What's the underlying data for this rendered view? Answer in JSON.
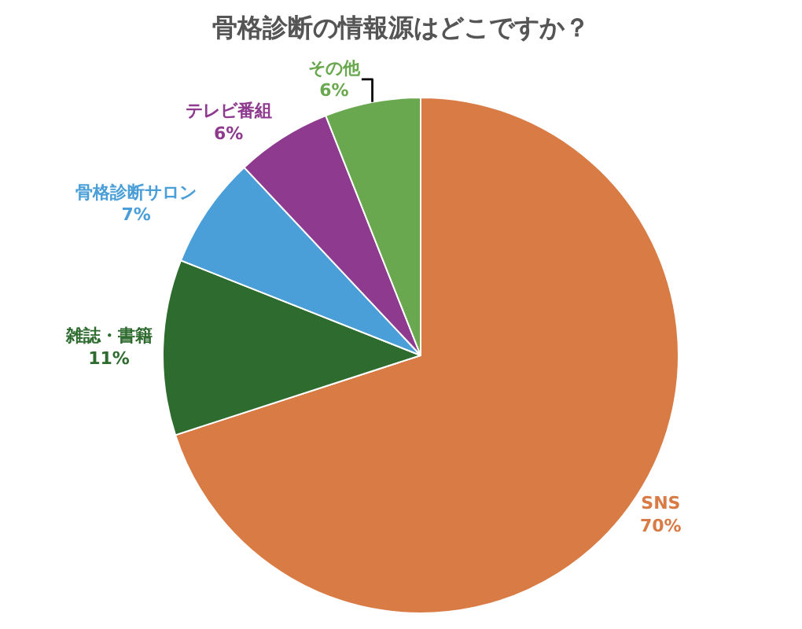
{
  "chart_data": {
    "type": "pie",
    "title": "骨格診断の情報源はどこですか？",
    "categories": [
      "SNS",
      "雑誌・書籍",
      "骨格診断サロン",
      "テレビ番組",
      "その他"
    ],
    "values": [
      70,
      11,
      7,
      6,
      6
    ],
    "value_labels": [
      "70%",
      "11%",
      "7%",
      "6%",
      "6%"
    ],
    "colors": [
      "#d97b45",
      "#2e6b2f",
      "#4a9fd8",
      "#8e3a8f",
      "#6aa84f"
    ],
    "legend": false
  }
}
